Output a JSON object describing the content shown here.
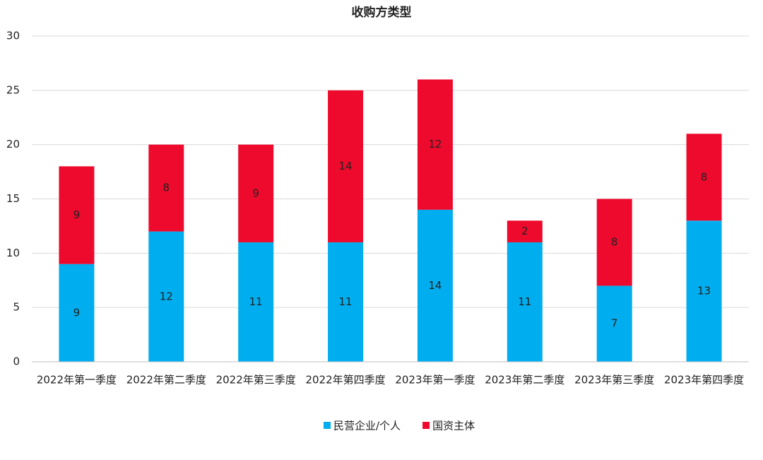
{
  "chart_data": {
    "type": "stacked_bar",
    "title": "收购方类型",
    "categories": [
      "2022年第一季度",
      "2022年第二季度",
      "2022年第三季度",
      "2022年第四季度",
      "2023年第一季度",
      "2023年第二季度",
      "2023年第三季度",
      "2023年第四季度"
    ],
    "series": [
      {
        "name": "民营企业/个人",
        "color": "#00aeef",
        "values": [
          9,
          12,
          11,
          11,
          14,
          11,
          7,
          13
        ]
      },
      {
        "name": "国资主体",
        "color": "#ee0a2c",
        "values": [
          9,
          8,
          9,
          14,
          12,
          2,
          8,
          8
        ]
      }
    ],
    "ylim": [
      0,
      30
    ],
    "yticks": [
      0,
      5,
      10,
      15,
      20,
      25,
      30
    ],
    "grid": true,
    "legend": "bottom"
  }
}
